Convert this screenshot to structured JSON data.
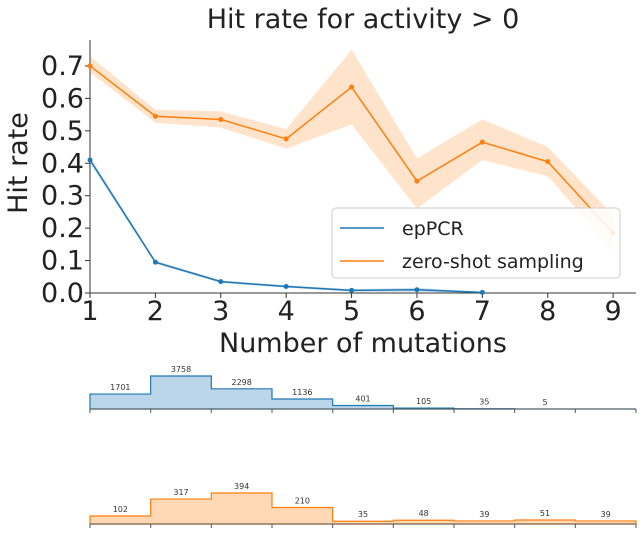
{
  "chart_data": [
    {
      "type": "line",
      "title": "Hit rate for activity > 0",
      "xlabel": "Number of mutations",
      "ylabel": "Hit rate",
      "x": [
        1,
        2,
        3,
        4,
        5,
        6,
        7,
        8,
        9
      ],
      "xlim": [
        1,
        9.35
      ],
      "ylim": [
        0,
        0.78
      ],
      "yticks": [
        0.0,
        0.1,
        0.2,
        0.3,
        0.4,
        0.5,
        0.6,
        0.7
      ],
      "ytick_labels": [
        "0.0",
        "0.1",
        "0.2",
        "0.3",
        "0.4",
        "0.5",
        "0.6",
        "0.7"
      ],
      "xtick_labels": [
        "1",
        "2",
        "3",
        "4",
        "5",
        "6",
        "7",
        "8",
        "9"
      ],
      "legend_position": "center-right",
      "series": [
        {
          "name": "epPCR",
          "color": "#1f77b4",
          "values": [
            0.41,
            0.095,
            0.035,
            0.02,
            0.008,
            0.01,
            0.002,
            null,
            null
          ],
          "lower": [
            0.4,
            0.09,
            0.031,
            0.016,
            0.004,
            0.004,
            0.0,
            null,
            null
          ],
          "upper": [
            0.42,
            0.1,
            0.039,
            0.024,
            0.012,
            0.016,
            0.004,
            null,
            null
          ]
        },
        {
          "name": "zero-shot sampling",
          "color": "#ff7f0e",
          "values": [
            0.7,
            0.545,
            0.535,
            0.475,
            0.635,
            0.345,
            0.465,
            0.405,
            0.185
          ],
          "lower": [
            0.68,
            0.525,
            0.51,
            0.445,
            0.52,
            0.26,
            0.41,
            0.36,
            0.13
          ],
          "upper": [
            0.73,
            0.565,
            0.56,
            0.505,
            0.75,
            0.415,
            0.535,
            0.45,
            0.24
          ]
        }
      ]
    },
    {
      "type": "bar",
      "title": "",
      "series_name": "epPCR",
      "color": "#1f77b4",
      "categories": [
        "1",
        "2",
        "3",
        "4",
        "5",
        "6",
        "7",
        "8",
        "9"
      ],
      "values": [
        1701,
        3758,
        2298,
        1136,
        401,
        105,
        35,
        5,
        0
      ],
      "count_labels": [
        "1701",
        "3758",
        "2298",
        "1136",
        "401",
        "105",
        "35",
        "5",
        ""
      ]
    },
    {
      "type": "bar",
      "title": "",
      "series_name": "zero-shot sampling",
      "color": "#ff7f0e",
      "categories": [
        "1",
        "2",
        "3",
        "4",
        "5",
        "6",
        "7",
        "8",
        "9"
      ],
      "values": [
        102,
        317,
        394,
        210,
        35,
        48,
        39,
        51,
        39
      ],
      "count_labels": [
        "102",
        "317",
        "394",
        "210",
        "35",
        "48",
        "39",
        "51",
        "39"
      ]
    }
  ]
}
